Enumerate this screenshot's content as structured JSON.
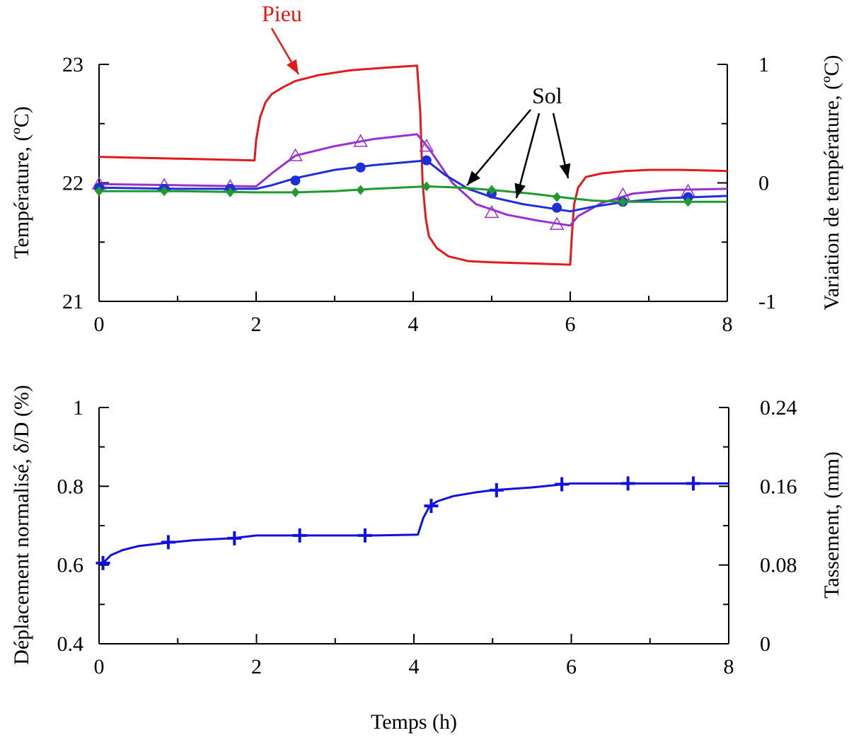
{
  "colors": {
    "pile": "#e31a1c",
    "soil_purple": "#9b30d0",
    "soil_blue": "#1f2fd6",
    "soil_green": "#1f9a2f",
    "settlement": "#1010e0",
    "axis": "#000000"
  },
  "chart_data": [
    {
      "type": "line",
      "title": "",
      "xlabel": "",
      "ylabel": "Température, (ºC)",
      "ylabel_right": "Variation de température, (ºC)",
      "xlim": [
        0,
        8
      ],
      "ylim": [
        21,
        23
      ],
      "ylim_right": [
        -1,
        1
      ],
      "xticks": [
        "0",
        "2",
        "4",
        "6",
        "8"
      ],
      "yticks": [
        "21",
        "22",
        "23"
      ],
      "yticks_right": [
        "-1",
        "0",
        "1"
      ],
      "annotations": [
        "Pieu",
        "Sol"
      ],
      "series": [
        {
          "name": "Pieu",
          "color": "pile",
          "marker": "none",
          "x": [
            0,
            1.98,
            2.0,
            2.05,
            2.12,
            2.2,
            2.35,
            2.5,
            2.8,
            3.2,
            3.6,
            4.05,
            4.09,
            4.12,
            4.16,
            4.2,
            4.3,
            4.45,
            4.7,
            5.0,
            5.5,
            6.0,
            6.02,
            6.05,
            6.1,
            6.2,
            6.4,
            6.7,
            7.0,
            7.4,
            8.0
          ],
          "y": [
            22.22,
            22.19,
            22.36,
            22.55,
            22.68,
            22.75,
            22.81,
            22.86,
            22.91,
            22.95,
            22.97,
            22.99,
            22.6,
            22.0,
            21.7,
            21.55,
            21.45,
            21.38,
            21.34,
            21.33,
            21.32,
            21.31,
            21.55,
            21.82,
            21.96,
            22.05,
            22.08,
            22.1,
            22.11,
            22.11,
            22.1
          ]
        },
        {
          "name": "Sol (triangles)",
          "color": "soil_purple",
          "marker": "triangle",
          "x": [
            0,
            1,
            2.0,
            2.2,
            2.5,
            3.0,
            3.5,
            4.05,
            4.2,
            4.5,
            4.8,
            5.2,
            5.6,
            6.0,
            6.1,
            6.4,
            6.8,
            7.3,
            8.0
          ],
          "y": [
            21.99,
            21.98,
            21.97,
            22.08,
            22.23,
            22.31,
            22.37,
            22.41,
            22.29,
            22.0,
            21.82,
            21.73,
            21.68,
            21.64,
            21.72,
            21.83,
            21.91,
            21.94,
            21.95
          ],
          "markers_x": [
            0,
            0.83,
            1.67,
            2.5,
            3.33,
            4.17,
            5.0,
            5.83,
            6.67,
            7.5
          ],
          "markers_y": [
            21.99,
            21.98,
            21.97,
            22.23,
            22.35,
            22.31,
            21.75,
            21.65,
            21.9,
            21.93
          ]
        },
        {
          "name": "Sol (cercles)",
          "color": "soil_blue",
          "marker": "circle",
          "x": [
            0,
            1,
            2.0,
            2.2,
            2.5,
            3.0,
            3.5,
            4.17,
            4.4,
            4.7,
            5.0,
            5.4,
            5.8,
            6.0,
            6.3,
            6.7,
            7.2,
            8.0
          ],
          "y": [
            21.96,
            21.95,
            21.95,
            21.98,
            22.04,
            22.11,
            22.15,
            22.19,
            22.07,
            21.95,
            21.88,
            21.82,
            21.78,
            21.76,
            21.8,
            21.84,
            21.87,
            21.89
          ],
          "markers_x": [
            0,
            0.83,
            1.67,
            2.5,
            3.33,
            4.17,
            5.0,
            5.83,
            6.67,
            7.5
          ],
          "markers_y": [
            21.96,
            21.95,
            21.95,
            22.02,
            22.13,
            22.19,
            21.91,
            21.79,
            21.84,
            21.88
          ]
        },
        {
          "name": "Sol (losanges)",
          "color": "soil_green",
          "marker": "diamond",
          "x": [
            0,
            1,
            2.0,
            2.5,
            3.0,
            3.5,
            4.17,
            4.6,
            5.0,
            5.5,
            6.0,
            6.3,
            6.7,
            7.2,
            8.0
          ],
          "y": [
            21.93,
            21.93,
            21.92,
            21.92,
            21.93,
            21.95,
            21.97,
            21.96,
            21.94,
            21.91,
            21.87,
            21.85,
            21.84,
            21.84,
            21.84
          ],
          "markers_x": [
            0,
            0.83,
            1.67,
            2.5,
            3.33,
            4.17,
            5.0,
            5.83,
            6.67,
            7.5
          ],
          "markers_y": [
            21.93,
            21.93,
            21.92,
            21.92,
            21.94,
            21.97,
            21.94,
            21.88,
            21.84,
            21.84
          ]
        }
      ]
    },
    {
      "type": "line",
      "title": "",
      "xlabel": "Temps (h)",
      "ylabel": "Déplacement normalisé, δ/D (%)",
      "ylabel_right": "Tassement, (mm)",
      "xlim": [
        0,
        8
      ],
      "ylim": [
        0.4,
        1.0
      ],
      "ylim_right": [
        0,
        0.24
      ],
      "xticks": [
        "0",
        "2",
        "4",
        "6",
        "8"
      ],
      "yticks": [
        "0.4",
        "0.6",
        "0.8",
        "1"
      ],
      "yticks_right": [
        "0",
        "0.08",
        "0.16",
        "0.24"
      ],
      "series": [
        {
          "name": "Tassement",
          "color": "settlement",
          "marker": "plus",
          "x": [
            0.05,
            0.15,
            0.3,
            0.5,
            0.8,
            1.2,
            1.7,
            2.0,
            2.5,
            3.0,
            3.5,
            4.05,
            4.12,
            4.2,
            4.3,
            4.5,
            4.8,
            5.0,
            5.5,
            6.0,
            6.5,
            7.0,
            7.5,
            8.0
          ],
          "y": [
            0.605,
            0.625,
            0.638,
            0.648,
            0.655,
            0.663,
            0.668,
            0.675,
            0.675,
            0.675,
            0.675,
            0.677,
            0.72,
            0.75,
            0.762,
            0.775,
            0.785,
            0.79,
            0.797,
            0.807,
            0.807,
            0.807,
            0.807,
            0.807
          ],
          "markers_x": [
            0.05,
            0.88,
            1.72,
            2.55,
            3.38,
            4.22,
            5.05,
            5.88,
            6.72,
            7.55
          ],
          "markers_y": [
            0.605,
            0.658,
            0.668,
            0.675,
            0.675,
            0.75,
            0.79,
            0.805,
            0.807,
            0.807
          ]
        }
      ]
    }
  ]
}
